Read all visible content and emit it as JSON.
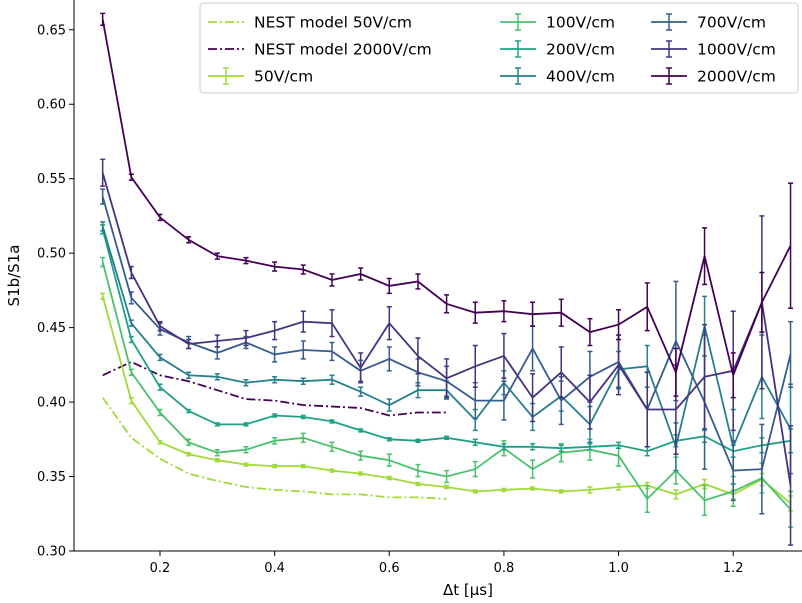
{
  "chart_data": {
    "type": "line",
    "xlabel": "Δt [μs]",
    "ylabel": "S1b/S1a",
    "xlim": [
      0.05,
      1.32
    ],
    "ylim": [
      0.3,
      0.67
    ],
    "xticks": [
      "0.2",
      "0.4",
      "0.6",
      "0.8",
      "1.0",
      "1.2"
    ],
    "yticks": [
      "0.30",
      "0.35",
      "0.40",
      "0.45",
      "0.50",
      "0.55",
      "0.60",
      "0.65"
    ],
    "legend_position": "top-right",
    "grid": false,
    "models": [
      {
        "name": "NEST model 50V/cm",
        "color": "#a0da39",
        "x": [
          0.1,
          0.15,
          0.2,
          0.25,
          0.3,
          0.35,
          0.4,
          0.45,
          0.5,
          0.55,
          0.6,
          0.65,
          0.7
        ],
        "y": [
          0.403,
          0.376,
          0.362,
          0.352,
          0.347,
          0.343,
          0.341,
          0.34,
          0.338,
          0.338,
          0.336,
          0.336,
          0.335
        ]
      },
      {
        "name": "NEST model 2000V/cm",
        "color": "#440154",
        "x": [
          0.1,
          0.15,
          0.2,
          0.25,
          0.3,
          0.35,
          0.4,
          0.45,
          0.5,
          0.55,
          0.6,
          0.65,
          0.7
        ],
        "y": [
          0.418,
          0.427,
          0.418,
          0.414,
          0.408,
          0.402,
          0.401,
          0.398,
          0.397,
          0.396,
          0.391,
          0.393,
          0.393
        ]
      }
    ],
    "series": [
      {
        "name": "50V/cm",
        "color": "#a0da39",
        "x": [
          0.1,
          0.15,
          0.2,
          0.25,
          0.3,
          0.35,
          0.4,
          0.45,
          0.5,
          0.55,
          0.6,
          0.65,
          0.7,
          0.75,
          0.8,
          0.85,
          0.9,
          0.95,
          1.0,
          1.05,
          1.1,
          1.15,
          1.2,
          1.25,
          1.3
        ],
        "y": [
          0.471,
          0.401,
          0.373,
          0.365,
          0.361,
          0.358,
          0.357,
          0.357,
          0.354,
          0.352,
          0.349,
          0.345,
          0.343,
          0.34,
          0.341,
          0.342,
          0.34,
          0.341,
          0.343,
          0.344,
          0.338,
          0.345,
          0.338,
          0.348,
          0.332
        ],
        "err": [
          0.002,
          0.002,
          0.001,
          0.001,
          0.001,
          0.001,
          0.001,
          0.001,
          0.001,
          0.001,
          0.001,
          0.001,
          0.001,
          0.001,
          0.001,
          0.001,
          0.001,
          0.002,
          0.002,
          0.002,
          0.003,
          0.003,
          0.003,
          0.004,
          0.005
        ]
      },
      {
        "name": "100V/cm",
        "color": "#4ac16d",
        "x": [
          0.1,
          0.15,
          0.2,
          0.25,
          0.3,
          0.35,
          0.4,
          0.45,
          0.5,
          0.55,
          0.6,
          0.65,
          0.7,
          0.75,
          0.8,
          0.85,
          0.9,
          0.95,
          1.0,
          1.05,
          1.1,
          1.15,
          1.2,
          1.25,
          1.3
        ],
        "y": [
          0.494,
          0.42,
          0.393,
          0.373,
          0.366,
          0.368,
          0.374,
          0.376,
          0.37,
          0.364,
          0.361,
          0.354,
          0.35,
          0.355,
          0.369,
          0.355,
          0.366,
          0.368,
          0.364,
          0.335,
          0.354,
          0.334,
          0.34,
          0.349,
          0.328
        ],
        "err": [
          0.003,
          0.002,
          0.002,
          0.002,
          0.002,
          0.002,
          0.002,
          0.003,
          0.003,
          0.003,
          0.004,
          0.004,
          0.004,
          0.005,
          0.005,
          0.006,
          0.006,
          0.007,
          0.007,
          0.009,
          0.009,
          0.01,
          0.01,
          0.01,
          0.012
        ]
      },
      {
        "name": "200V/cm",
        "color": "#1fa187",
        "x": [
          0.1,
          0.15,
          0.2,
          0.25,
          0.3,
          0.35,
          0.4,
          0.45,
          0.5,
          0.55,
          0.6,
          0.65,
          0.7,
          0.75,
          0.8,
          0.85,
          0.9,
          0.95,
          1.0,
          1.05,
          1.1,
          1.15,
          1.2,
          1.25,
          1.3
        ],
        "y": [
          0.516,
          0.442,
          0.41,
          0.394,
          0.385,
          0.385,
          0.391,
          0.39,
          0.387,
          0.381,
          0.375,
          0.374,
          0.376,
          0.373,
          0.37,
          0.37,
          0.369,
          0.37,
          0.371,
          0.367,
          0.374,
          0.377,
          0.367,
          0.371,
          0.374
        ],
        "err": [
          0.003,
          0.002,
          0.002,
          0.001,
          0.001,
          0.001,
          0.001,
          0.001,
          0.001,
          0.001,
          0.001,
          0.001,
          0.001,
          0.002,
          0.002,
          0.002,
          0.002,
          0.002,
          0.002,
          0.003,
          0.004,
          0.004,
          0.004,
          0.005,
          0.008
        ]
      },
      {
        "name": "400V/cm",
        "color": "#277f8e",
        "x": [
          0.1,
          0.15,
          0.2,
          0.25,
          0.3,
          0.35,
          0.4,
          0.45,
          0.5,
          0.55,
          0.6,
          0.65,
          0.7,
          0.75,
          0.8,
          0.85,
          0.9,
          0.95,
          1.0,
          1.05,
          1.1,
          1.15,
          1.2,
          1.25,
          1.3
        ],
        "y": [
          0.518,
          0.453,
          0.43,
          0.418,
          0.417,
          0.413,
          0.415,
          0.414,
          0.415,
          0.407,
          0.398,
          0.408,
          0.408,
          0.388,
          0.413,
          0.39,
          0.404,
          0.385,
          0.422,
          0.424,
          0.37,
          0.451,
          0.37,
          0.417,
          0.382
        ],
        "err": [
          0.003,
          0.002,
          0.002,
          0.002,
          0.002,
          0.002,
          0.002,
          0.002,
          0.003,
          0.003,
          0.004,
          0.005,
          0.006,
          0.007,
          0.008,
          0.009,
          0.01,
          0.012,
          0.012,
          0.014,
          0.016,
          0.02,
          0.025,
          0.028,
          0.03
        ]
      },
      {
        "name": "700V/cm",
        "color": "#365c8d",
        "x": [
          0.1,
          0.15,
          0.2,
          0.25,
          0.3,
          0.35,
          0.4,
          0.45,
          0.5,
          0.55,
          0.6,
          0.65,
          0.7,
          0.75,
          0.8,
          0.85,
          0.9,
          0.95,
          1.0,
          1.05,
          1.1,
          1.15,
          1.2,
          1.25,
          1.3
        ],
        "y": [
          0.538,
          0.47,
          0.449,
          0.44,
          0.433,
          0.44,
          0.432,
          0.435,
          0.434,
          0.421,
          0.429,
          0.42,
          0.414,
          0.401,
          0.401,
          0.436,
          0.401,
          0.417,
          0.427,
          0.395,
          0.441,
          0.4,
          0.354,
          0.355,
          0.432
        ],
        "err": [
          0.005,
          0.004,
          0.004,
          0.004,
          0.004,
          0.004,
          0.005,
          0.006,
          0.006,
          0.007,
          0.008,
          0.009,
          0.01,
          0.012,
          0.013,
          0.015,
          0.016,
          0.017,
          0.018,
          0.025,
          0.04,
          0.045,
          0.02,
          0.03,
          0.022
        ]
      },
      {
        "name": "1000V/cm",
        "color": "#46327e",
        "x": [
          0.1,
          0.15,
          0.2,
          0.25,
          0.3,
          0.35,
          0.4,
          0.45,
          0.5,
          0.55,
          0.6,
          0.65,
          0.7,
          0.75,
          0.8,
          0.85,
          0.9,
          0.95,
          1.0,
          1.05,
          1.1,
          1.15,
          1.2,
          1.25,
          1.3
        ],
        "y": [
          0.554,
          0.487,
          0.451,
          0.439,
          0.441,
          0.443,
          0.448,
          0.454,
          0.453,
          0.423,
          0.453,
          0.431,
          0.416,
          0.424,
          0.431,
          0.403,
          0.42,
          0.4,
          0.425,
          0.395,
          0.395,
          0.417,
          0.421,
          0.467,
          0.344
        ],
        "err": [
          0.009,
          0.004,
          0.003,
          0.003,
          0.004,
          0.005,
          0.006,
          0.007,
          0.009,
          0.01,
          0.011,
          0.012,
          0.013,
          0.014,
          0.015,
          0.016,
          0.017,
          0.018,
          0.02,
          0.025,
          0.03,
          0.035,
          0.04,
          0.058,
          0.04
        ]
      },
      {
        "name": "2000V/cm",
        "color": "#440154",
        "x": [
          0.1,
          0.15,
          0.2,
          0.25,
          0.3,
          0.35,
          0.4,
          0.45,
          0.5,
          0.55,
          0.6,
          0.65,
          0.7,
          0.75,
          0.8,
          0.85,
          0.9,
          0.95,
          1.0,
          1.05,
          1.1,
          1.15,
          1.2,
          1.25,
          1.3
        ],
        "y": [
          0.657,
          0.551,
          0.524,
          0.509,
          0.498,
          0.495,
          0.491,
          0.489,
          0.482,
          0.486,
          0.478,
          0.481,
          0.466,
          0.46,
          0.461,
          0.459,
          0.46,
          0.447,
          0.452,
          0.464,
          0.42,
          0.498,
          0.418,
          0.467,
          0.505
        ],
        "err": [
          0.004,
          0.002,
          0.002,
          0.002,
          0.002,
          0.002,
          0.003,
          0.003,
          0.004,
          0.004,
          0.005,
          0.005,
          0.006,
          0.007,
          0.007,
          0.008,
          0.009,
          0.009,
          0.01,
          0.016,
          0.016,
          0.019,
          0.015,
          0.02,
          0.042
        ]
      }
    ]
  }
}
